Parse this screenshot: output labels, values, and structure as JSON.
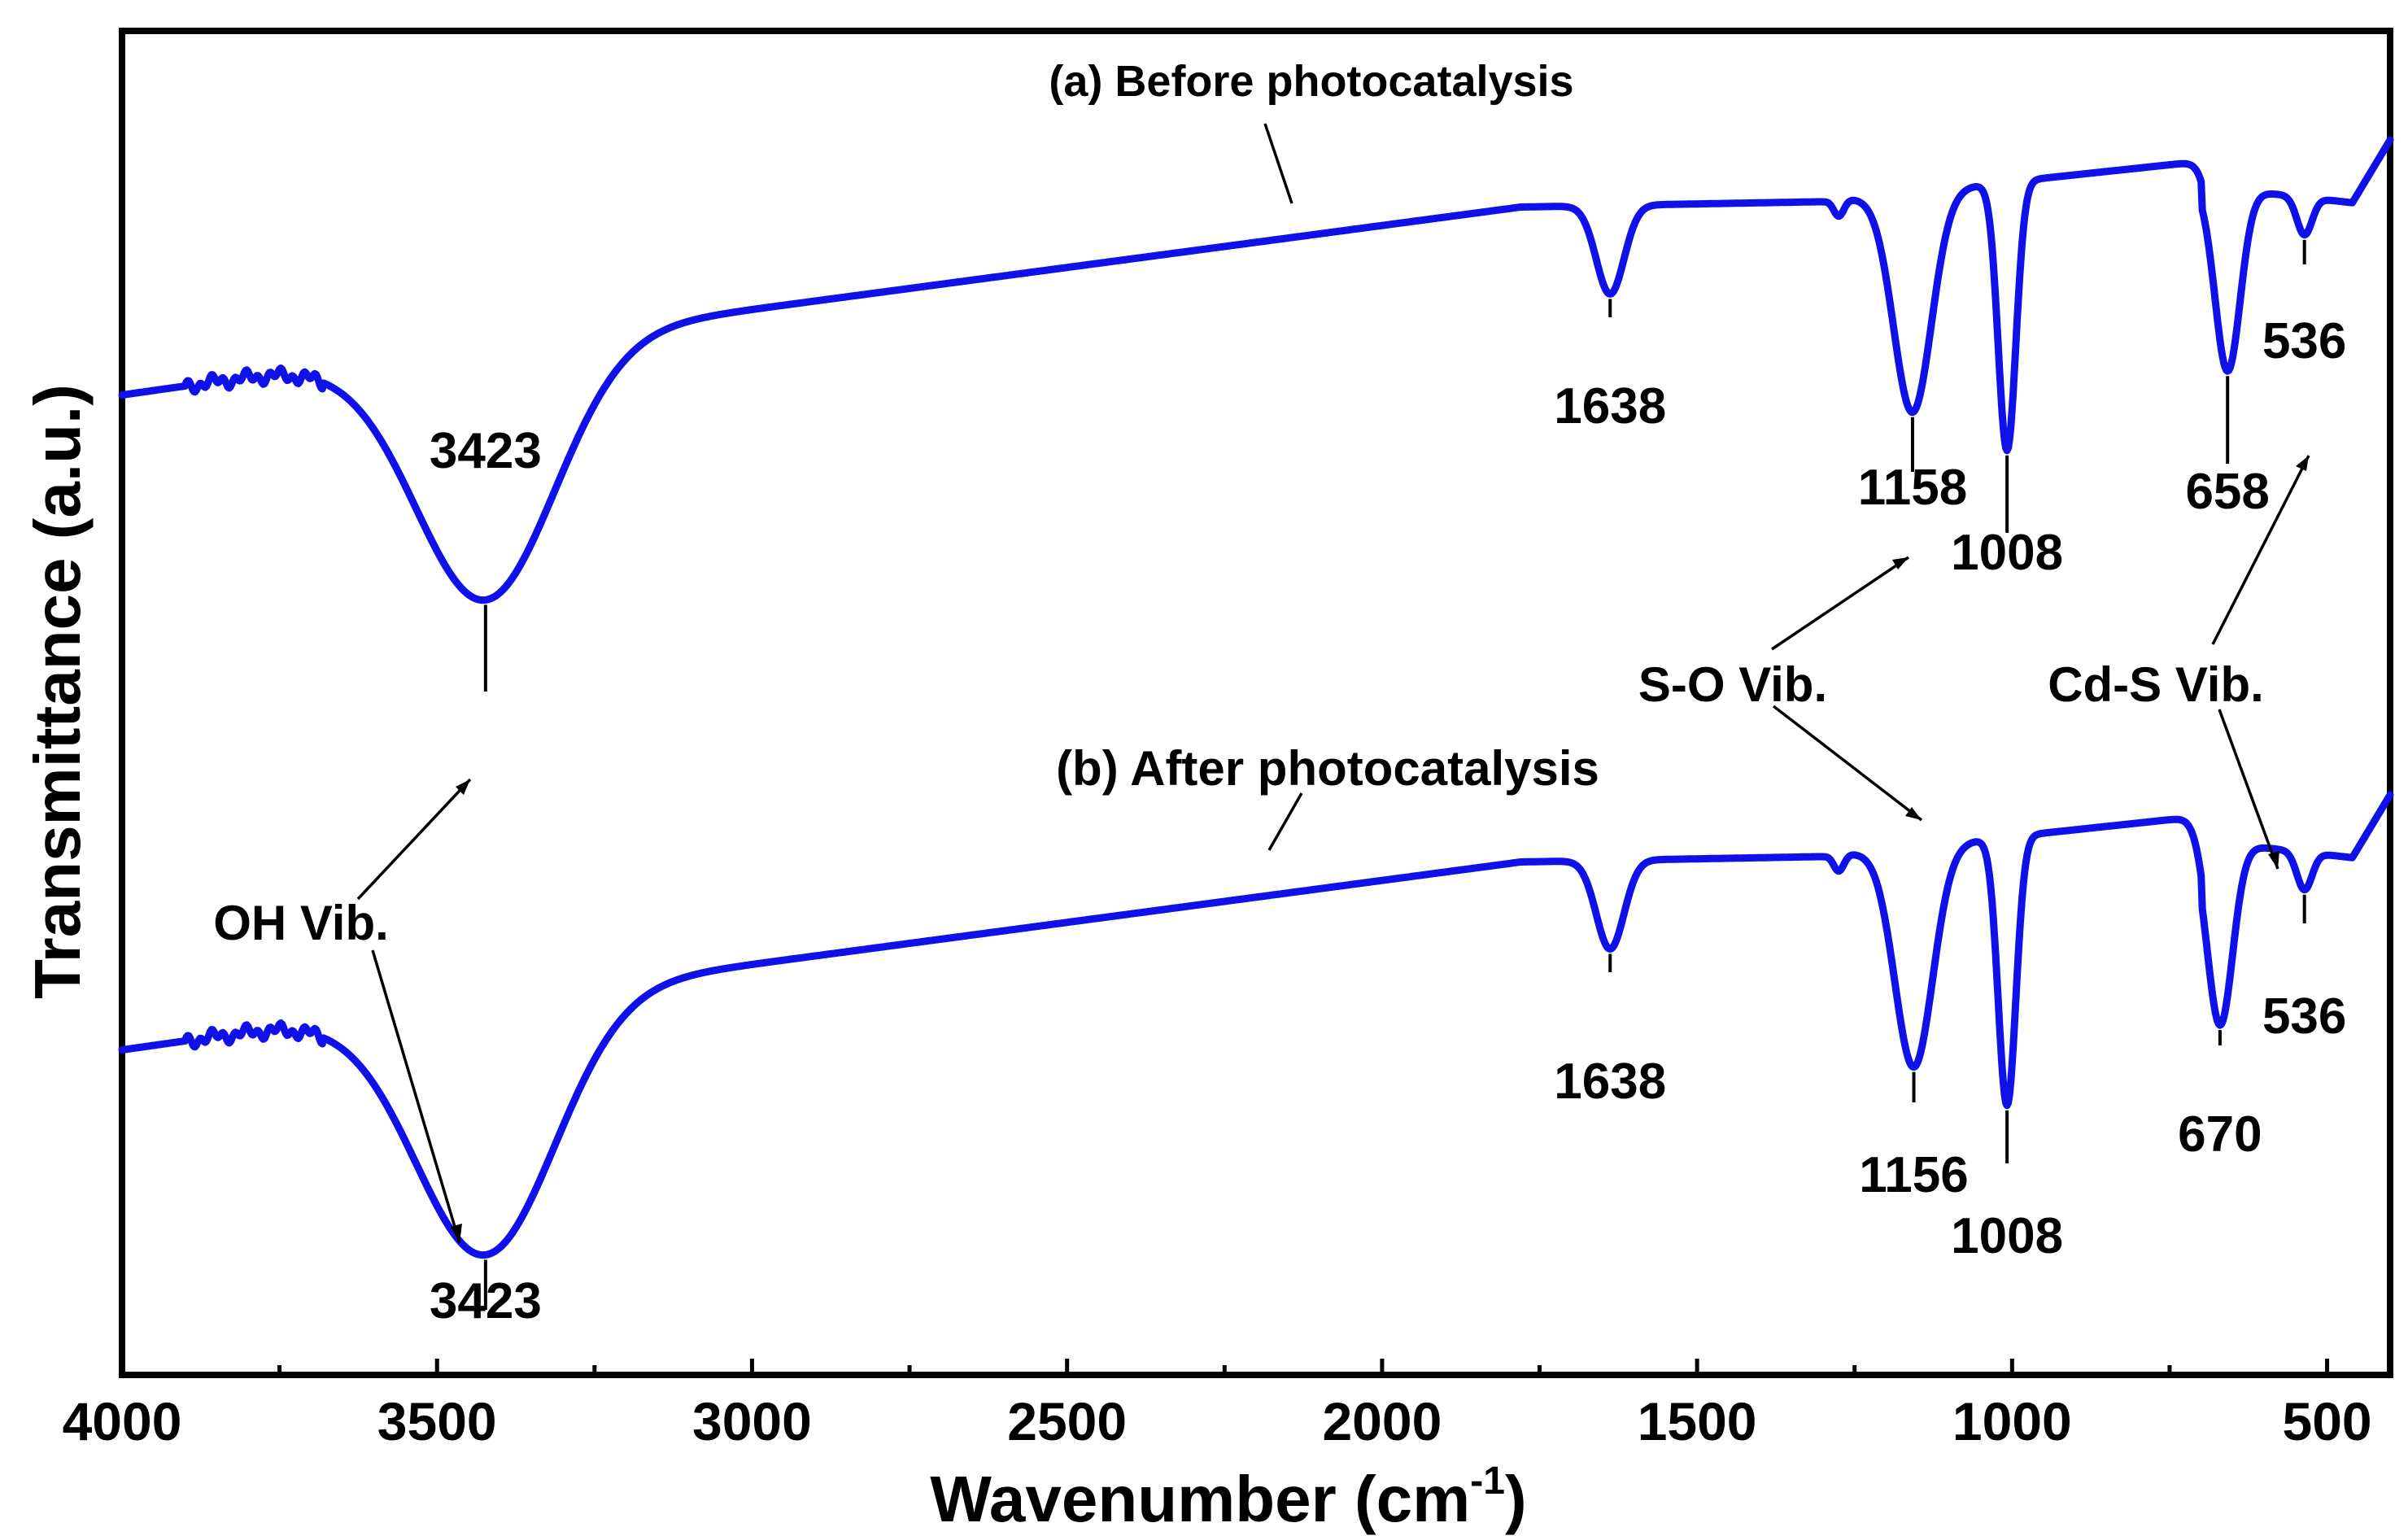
{
  "colors": {
    "series": "#1010e8",
    "axis": "#000000"
  },
  "chart_data": {
    "type": "line",
    "title": "",
    "xlabel": "Wavenumber (cm",
    "xlabel_sup": "-1",
    "xlabel_close": ")",
    "ylabel": "Transmittance (a.u.)",
    "xlim": [
      4000,
      400
    ],
    "x_reversed": true,
    "x_ticks": [
      "4000",
      "3500",
      "3000",
      "2500",
      "2000",
      "1500",
      "1000",
      "500"
    ],
    "y_tick_labels": "none",
    "series": [
      {
        "name": "(a) Before photocatalysis",
        "label": "(a) Before photocatalysis",
        "offset": 1.0,
        "baseline_points": [
          [
            4000,
            0.45
          ],
          [
            3700,
            0.52
          ],
          [
            3423,
            0.0
          ],
          [
            2950,
            0.42
          ],
          [
            1780,
            0.72
          ]
        ],
        "peaks": [
          {
            "x": 3423,
            "label": "3423"
          },
          {
            "x": 1638,
            "label": "1638"
          },
          {
            "x": 1158,
            "label": "1158"
          },
          {
            "x": 1008,
            "label": "1008"
          },
          {
            "x": 658,
            "label": "658"
          },
          {
            "x": 536,
            "label": "536"
          }
        ]
      },
      {
        "name": "(b) After photocatalysis",
        "label": "(b) After photocatalysis",
        "offset": 0.0,
        "baseline_points": [
          [
            4000,
            0.45
          ],
          [
            3700,
            0.52
          ],
          [
            3423,
            0.0
          ],
          [
            2950,
            0.42
          ],
          [
            1780,
            0.72
          ]
        ],
        "peaks": [
          {
            "x": 3423,
            "label": "3423"
          },
          {
            "x": 1638,
            "label": "1638"
          },
          {
            "x": 1156,
            "label": "1156"
          },
          {
            "x": 1008,
            "label": "1008"
          },
          {
            "x": 670,
            "label": "670"
          },
          {
            "x": 536,
            "label": "536"
          }
        ]
      }
    ],
    "annotations": [
      {
        "text": "OH Vib.",
        "targets": [
          3423,
          3423
        ]
      },
      {
        "text": "S-O Vib.",
        "targets": [
          1158,
          1156
        ]
      },
      {
        "text": "Cd-S Vib.",
        "targets": [
          536,
          536
        ]
      }
    ]
  }
}
